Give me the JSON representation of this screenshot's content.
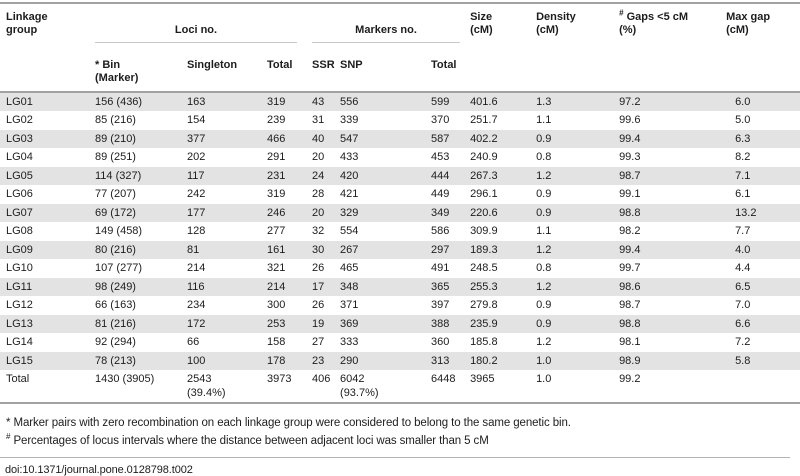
{
  "table": {
    "columns": {
      "linkage_group": "Linkage\ngroup",
      "loci_group": "Loci no.",
      "markers_group": "Markers no.",
      "bin": "* Bin\n(Marker)",
      "singleton": "Singleton",
      "loci_total": "Total",
      "ssr": "SSR",
      "snp": "SNP",
      "markers_total": "Total",
      "size": "Size\n(cM)",
      "density": "Density\n(cM)",
      "gaps_sup": "#",
      "gaps": " Gaps <5 cM\n(%)",
      "max_gap": "Max gap\n(cM)"
    },
    "rows": [
      [
        "LG01",
        "156 (436)",
        "163",
        "319",
        "43",
        "556",
        "599",
        "401.6",
        "1.3",
        "97.2",
        "6.0"
      ],
      [
        "LG02",
        "85 (216)",
        "154",
        "239",
        "31",
        "339",
        "370",
        "251.7",
        "1.1",
        "99.6",
        "5.0"
      ],
      [
        "LG03",
        "89 (210)",
        "377",
        "466",
        "40",
        "547",
        "587",
        "402.2",
        "0.9",
        "99.4",
        "6.3"
      ],
      [
        "LG04",
        "89 (251)",
        "202",
        "291",
        "20",
        "433",
        "453",
        "240.9",
        "0.8",
        "99.3",
        "8.2"
      ],
      [
        "LG05",
        "114 (327)",
        "117",
        "231",
        "24",
        "420",
        "444",
        "267.3",
        "1.2",
        "98.7",
        "7.1"
      ],
      [
        "LG06",
        "77 (207)",
        "242",
        "319",
        "28",
        "421",
        "449",
        "296.1",
        "0.9",
        "99.1",
        "6.1"
      ],
      [
        "LG07",
        "69 (172)",
        "177",
        "246",
        "20",
        "329",
        "349",
        "220.6",
        "0.9",
        "98.8",
        "13.2"
      ],
      [
        "LG08",
        "149 (458)",
        "128",
        "277",
        "32",
        "554",
        "586",
        "309.9",
        "1.1",
        "98.2",
        "7.7"
      ],
      [
        "LG09",
        "80 (216)",
        "81",
        "161",
        "30",
        "267",
        "297",
        "189.3",
        "1.2",
        "99.4",
        "4.0"
      ],
      [
        "LG10",
        "107 (277)",
        "214",
        "321",
        "26",
        "465",
        "491",
        "248.5",
        "0.8",
        "99.7",
        "4.4"
      ],
      [
        "LG11",
        "98 (249)",
        "116",
        "214",
        "17",
        "348",
        "365",
        "255.3",
        "1.2",
        "98.6",
        "6.5"
      ],
      [
        "LG12",
        "66 (163)",
        "234",
        "300",
        "26",
        "371",
        "397",
        "279.8",
        "0.9",
        "98.7",
        "7.0"
      ],
      [
        "LG13",
        "81 (216)",
        "172",
        "253",
        "19",
        "369",
        "388",
        "235.9",
        "0.9",
        "98.8",
        "6.6"
      ],
      [
        "LG14",
        "92 (294)",
        "66",
        "158",
        "27",
        "333",
        "360",
        "185.8",
        "1.2",
        "98.1",
        "7.2"
      ],
      [
        "LG15",
        "78 (213)",
        "100",
        "178",
        "23",
        "290",
        "313",
        "180.2",
        "1.0",
        "98.9",
        "5.8"
      ],
      [
        "Total",
        "1430 (3905)",
        "2543\n(39.4%)",
        "3973",
        "406",
        "6042\n(93.7%)",
        "6448",
        "3965",
        "1.0",
        "99.2",
        ""
      ]
    ]
  },
  "footnotes": {
    "asterisk": "* Marker pairs with zero recombination on each linkage group were considered to belong to the same genetic bin.",
    "hash_sup": "#",
    "hash": " Percentages of locus intervals where the distance between adjacent loci was smaller than 5 cM"
  },
  "doi": "doi:10.1371/journal.pone.0128798.t002",
  "colors": {
    "stripe": "#e3e3e3",
    "heavy_border": "#a2a2a2",
    "group_rule": "#c9c9c9",
    "footnote_rule": "#b3b3b3",
    "text": "#1d1d1f"
  }
}
